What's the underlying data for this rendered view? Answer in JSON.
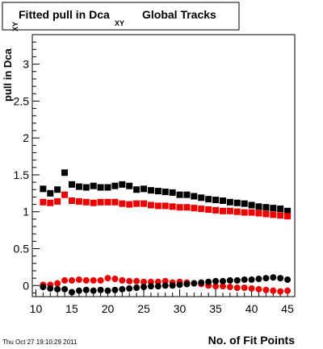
{
  "chart_data": {
    "type": "scatter",
    "title": {
      "prefix": "Fitted pull in Dca",
      "subscript": "XY",
      "suffix": "Global Tracks"
    },
    "xlabel": "No. of Fit Points",
    "ylabel": {
      "main": "pull in Dca",
      "subscript": "XY"
    },
    "footer": "Thu Oct 27 19:10:29 2011",
    "xlim": [
      9.5,
      46.0
    ],
    "ylim": [
      -0.15,
      3.4
    ],
    "x_ticks": [
      10,
      15,
      20,
      25,
      30,
      35,
      40,
      45
    ],
    "x_tick_labels": [
      "10",
      "15",
      "20",
      "25",
      "30",
      "35",
      "40",
      "45"
    ],
    "y_ticks": [
      0,
      0.5,
      1,
      1.5,
      2,
      2.5,
      3
    ],
    "y_tick_labels": [
      "0",
      "0.5",
      "1",
      "1.5",
      "2",
      "2.5",
      "3"
    ],
    "x": [
      11,
      12,
      13,
      14,
      15,
      16,
      17,
      18,
      19,
      20,
      21,
      22,
      23,
      24,
      25,
      26,
      27,
      28,
      29,
      30,
      31,
      32,
      33,
      34,
      35,
      36,
      37,
      38,
      39,
      40,
      41,
      42,
      43,
      44,
      45
    ],
    "series": [
      {
        "marker": "square",
        "color": "#000000",
        "values": [
          1.31,
          1.25,
          1.3,
          1.53,
          1.37,
          1.34,
          1.33,
          1.35,
          1.33,
          1.33,
          1.35,
          1.37,
          1.35,
          1.3,
          1.31,
          1.29,
          1.28,
          1.27,
          1.26,
          1.23,
          1.23,
          1.21,
          1.19,
          1.17,
          1.16,
          1.15,
          1.13,
          1.12,
          1.11,
          1.09,
          1.07,
          1.06,
          1.05,
          1.04,
          1.01
        ]
      },
      {
        "marker": "square",
        "color": "#ee0000",
        "values": [
          1.13,
          1.12,
          1.14,
          1.23,
          1.15,
          1.14,
          1.13,
          1.12,
          1.13,
          1.13,
          1.13,
          1.11,
          1.1,
          1.11,
          1.11,
          1.09,
          1.08,
          1.08,
          1.07,
          1.06,
          1.06,
          1.05,
          1.04,
          1.03,
          1.02,
          1.01,
          1.01,
          1.0,
          0.99,
          0.99,
          0.98,
          0.97,
          0.96,
          0.95,
          0.94
        ]
      },
      {
        "marker": "circle",
        "color": "#ee0000",
        "values": [
          0.01,
          0.01,
          0.03,
          0.07,
          0.07,
          0.08,
          0.07,
          0.07,
          0.07,
          0.1,
          0.09,
          0.07,
          0.06,
          0.06,
          0.05,
          0.05,
          0.05,
          0.06,
          0.04,
          0.05,
          0.04,
          0.03,
          0.02,
          0.0,
          -0.01,
          -0.01,
          -0.02,
          -0.03,
          -0.03,
          -0.04,
          -0.05,
          -0.06,
          -0.07,
          -0.08,
          -0.07
        ]
      },
      {
        "marker": "circle",
        "color": "#000000",
        "values": [
          -0.02,
          -0.04,
          -0.05,
          -0.05,
          -0.09,
          -0.07,
          -0.06,
          -0.07,
          -0.06,
          -0.07,
          -0.06,
          -0.05,
          -0.04,
          -0.03,
          -0.02,
          -0.01,
          -0.01,
          0.0,
          0.0,
          0.01,
          0.02,
          0.03,
          0.04,
          0.05,
          0.06,
          0.06,
          0.07,
          0.07,
          0.08,
          0.08,
          0.09,
          0.1,
          0.11,
          0.1,
          0.08
        ]
      }
    ]
  }
}
